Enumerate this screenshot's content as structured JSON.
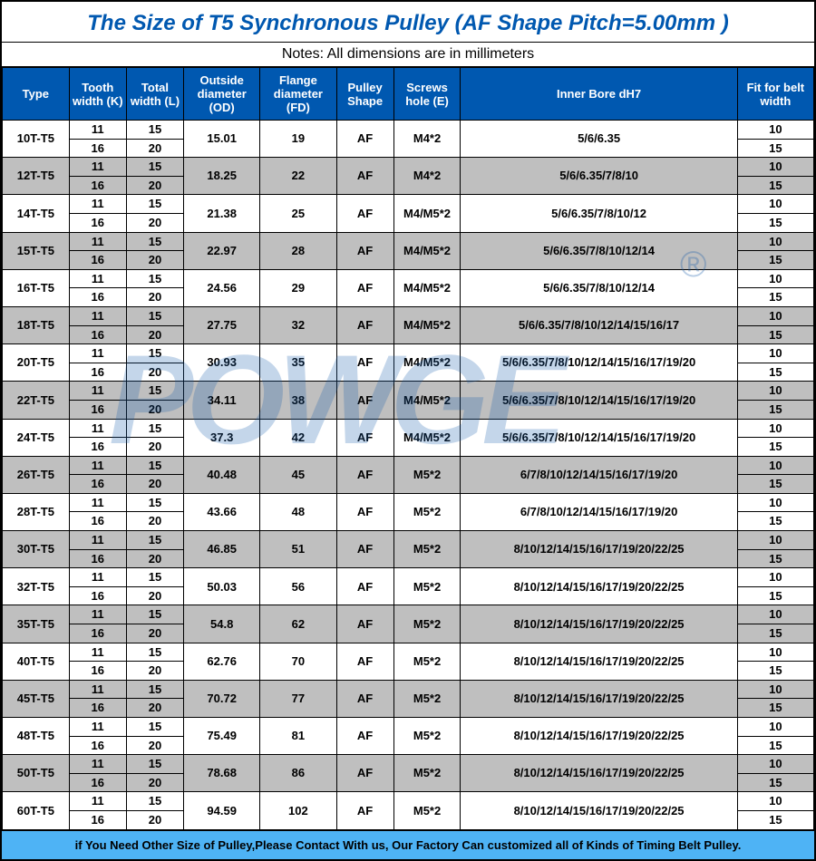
{
  "title": "The Size of T5 Synchronous Pulley (AF Shape Pitch=5.00mm )",
  "notes": "Notes: All dimensions are in millimeters",
  "footer": "if You Need Other Size of Pulley,Please Contact With us,  Our Factory Can customized all of Kinds of Timing Belt Pulley.",
  "watermark": "POWGE",
  "reg": "®",
  "colors": {
    "header_bg": "#0058b0",
    "header_fg": "#ffffff",
    "title_fg": "#0058b0",
    "shade_bg": "#bfbfbf",
    "footer_bg": "#4eb3f5",
    "border": "#000000",
    "watermark": "rgba(20,90,170,0.25)"
  },
  "columns": [
    {
      "key": "type",
      "label": "Type"
    },
    {
      "key": "k",
      "label": "Tooth width (K)"
    },
    {
      "key": "l",
      "label": "Total width (L)"
    },
    {
      "key": "od",
      "label": "Outside diameter (OD)"
    },
    {
      "key": "fd",
      "label": "Flange diameter (FD)"
    },
    {
      "key": "shape",
      "label": "Pulley Shape"
    },
    {
      "key": "e",
      "label": "Screws hole (E)"
    },
    {
      "key": "bore",
      "label": "Inner Bore dH7"
    },
    {
      "key": "fit",
      "label": "Fit for belt width"
    }
  ],
  "rows": [
    {
      "type": "10T-T5",
      "k": [
        "11",
        "16"
      ],
      "l": [
        "15",
        "20"
      ],
      "od": "15.01",
      "fd": "19",
      "shape": "AF",
      "e": "M4*2",
      "bore": "5/6/6.35",
      "fit": [
        "10",
        "15"
      ],
      "shade": false
    },
    {
      "type": "12T-T5",
      "k": [
        "11",
        "16"
      ],
      "l": [
        "15",
        "20"
      ],
      "od": "18.25",
      "fd": "22",
      "shape": "AF",
      "e": "M4*2",
      "bore": "5/6/6.35/7/8/10",
      "fit": [
        "10",
        "15"
      ],
      "shade": true
    },
    {
      "type": "14T-T5",
      "k": [
        "11",
        "16"
      ],
      "l": [
        "15",
        "20"
      ],
      "od": "21.38",
      "fd": "25",
      "shape": "AF",
      "e": "M4/M5*2",
      "bore": "5/6/6.35/7/8/10/12",
      "fit": [
        "10",
        "15"
      ],
      "shade": false
    },
    {
      "type": "15T-T5",
      "k": [
        "11",
        "16"
      ],
      "l": [
        "15",
        "20"
      ],
      "od": "22.97",
      "fd": "28",
      "shape": "AF",
      "e": "M4/M5*2",
      "bore": "5/6/6.35/7/8/10/12/14",
      "fit": [
        "10",
        "15"
      ],
      "shade": true
    },
    {
      "type": "16T-T5",
      "k": [
        "11",
        "16"
      ],
      "l": [
        "15",
        "20"
      ],
      "od": "24.56",
      "fd": "29",
      "shape": "AF",
      "e": "M4/M5*2",
      "bore": "5/6/6.35/7/8/10/12/14",
      "fit": [
        "10",
        "15"
      ],
      "shade": false
    },
    {
      "type": "18T-T5",
      "k": [
        "11",
        "16"
      ],
      "l": [
        "15",
        "20"
      ],
      "od": "27.75",
      "fd": "32",
      "shape": "AF",
      "e": "M4/M5*2",
      "bore": "5/6/6.35/7/8/10/12/14/15/16/17",
      "fit": [
        "10",
        "15"
      ],
      "shade": true
    },
    {
      "type": "20T-T5",
      "k": [
        "11",
        "16"
      ],
      "l": [
        "15",
        "20"
      ],
      "od": "30.93",
      "fd": "35",
      "shape": "AF",
      "e": "M4/M5*2",
      "bore": "5/6/6.35/7/8/10/12/14/15/16/17/19/20",
      "fit": [
        "10",
        "15"
      ],
      "shade": false
    },
    {
      "type": "22T-T5",
      "k": [
        "11",
        "16"
      ],
      "l": [
        "15",
        "20"
      ],
      "od": "34.11",
      "fd": "38",
      "shape": "AF",
      "e": "M4/M5*2",
      "bore": "5/6/6.35/7/8/10/12/14/15/16/17/19/20",
      "fit": [
        "10",
        "15"
      ],
      "shade": true
    },
    {
      "type": "24T-T5",
      "k": [
        "11",
        "16"
      ],
      "l": [
        "15",
        "20"
      ],
      "od": "37.3",
      "fd": "42",
      "shape": "AF",
      "e": "M4/M5*2",
      "bore": "5/6/6.35/7/8/10/12/14/15/16/17/19/20",
      "fit": [
        "10",
        "15"
      ],
      "shade": false
    },
    {
      "type": "26T-T5",
      "k": [
        "11",
        "16"
      ],
      "l": [
        "15",
        "20"
      ],
      "od": "40.48",
      "fd": "45",
      "shape": "AF",
      "e": "M5*2",
      "bore": "6/7/8/10/12/14/15/16/17/19/20",
      "fit": [
        "10",
        "15"
      ],
      "shade": true
    },
    {
      "type": "28T-T5",
      "k": [
        "11",
        "16"
      ],
      "l": [
        "15",
        "20"
      ],
      "od": "43.66",
      "fd": "48",
      "shape": "AF",
      "e": "M5*2",
      "bore": "6/7/8/10/12/14/15/16/17/19/20",
      "fit": [
        "10",
        "15"
      ],
      "shade": false
    },
    {
      "type": "30T-T5",
      "k": [
        "11",
        "16"
      ],
      "l": [
        "15",
        "20"
      ],
      "od": "46.85",
      "fd": "51",
      "shape": "AF",
      "e": "M5*2",
      "bore": "8/10/12/14/15/16/17/19/20/22/25",
      "fit": [
        "10",
        "15"
      ],
      "shade": true
    },
    {
      "type": "32T-T5",
      "k": [
        "11",
        "16"
      ],
      "l": [
        "15",
        "20"
      ],
      "od": "50.03",
      "fd": "56",
      "shape": "AF",
      "e": "M5*2",
      "bore": "8/10/12/14/15/16/17/19/20/22/25",
      "fit": [
        "10",
        "15"
      ],
      "shade": false
    },
    {
      "type": "35T-T5",
      "k": [
        "11",
        "16"
      ],
      "l": [
        "15",
        "20"
      ],
      "od": "54.8",
      "fd": "62",
      "shape": "AF",
      "e": "M5*2",
      "bore": "8/10/12/14/15/16/17/19/20/22/25",
      "fit": [
        "10",
        "15"
      ],
      "shade": true
    },
    {
      "type": "40T-T5",
      "k": [
        "11",
        "16"
      ],
      "l": [
        "15",
        "20"
      ],
      "od": "62.76",
      "fd": "70",
      "shape": "AF",
      "e": "M5*2",
      "bore": "8/10/12/14/15/16/17/19/20/22/25",
      "fit": [
        "10",
        "15"
      ],
      "shade": false
    },
    {
      "type": "45T-T5",
      "k": [
        "11",
        "16"
      ],
      "l": [
        "15",
        "20"
      ],
      "od": "70.72",
      "fd": "77",
      "shape": "AF",
      "e": "M5*2",
      "bore": "8/10/12/14/15/16/17/19/20/22/25",
      "fit": [
        "10",
        "15"
      ],
      "shade": true
    },
    {
      "type": "48T-T5",
      "k": [
        "11",
        "16"
      ],
      "l": [
        "15",
        "20"
      ],
      "od": "75.49",
      "fd": "81",
      "shape": "AF",
      "e": "M5*2",
      "bore": "8/10/12/14/15/16/17/19/20/22/25",
      "fit": [
        "10",
        "15"
      ],
      "shade": false
    },
    {
      "type": "50T-T5",
      "k": [
        "11",
        "16"
      ],
      "l": [
        "15",
        "20"
      ],
      "od": "78.68",
      "fd": "86",
      "shape": "AF",
      "e": "M5*2",
      "bore": "8/10/12/14/15/16/17/19/20/22/25",
      "fit": [
        "10",
        "15"
      ],
      "shade": true
    },
    {
      "type": "60T-T5",
      "k": [
        "11",
        "16"
      ],
      "l": [
        "15",
        "20"
      ],
      "od": "94.59",
      "fd": "102",
      "shape": "AF",
      "e": "M5*2",
      "bore": "8/10/12/14/15/16/17/19/20/22/25",
      "fit": [
        "10",
        "15"
      ],
      "shade": false
    }
  ]
}
